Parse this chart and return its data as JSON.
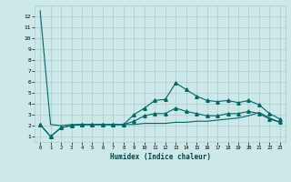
{
  "title": "",
  "xlabel": "Humidex (Indice chaleur)",
  "ylabel": "",
  "bg_color": "#cce8e8",
  "grid_color": "#aacccc",
  "line_color": "#006666",
  "xlim": [
    -0.5,
    23.5
  ],
  "ylim": [
    0.5,
    13
  ],
  "xticks": [
    0,
    1,
    2,
    3,
    4,
    5,
    6,
    7,
    8,
    9,
    10,
    11,
    12,
    13,
    14,
    15,
    16,
    17,
    18,
    19,
    20,
    21,
    22,
    23
  ],
  "yticks": [
    1,
    2,
    3,
    4,
    5,
    6,
    7,
    8,
    9,
    10,
    11,
    12
  ],
  "line1_x": [
    0,
    1,
    2,
    3,
    4,
    5,
    6,
    7,
    8,
    9,
    10,
    11,
    12,
    13,
    14,
    15,
    16,
    17,
    18,
    19,
    20,
    21,
    22,
    23
  ],
  "line1_y": [
    12.5,
    2.1,
    2.0,
    2.1,
    2.1,
    2.1,
    2.1,
    2.1,
    2.1,
    2.1,
    2.2,
    2.2,
    2.2,
    2.3,
    2.3,
    2.4,
    2.4,
    2.5,
    2.6,
    2.7,
    2.9,
    3.2,
    2.7,
    2.3
  ],
  "line2_x": [
    0,
    1,
    2,
    3,
    4,
    5,
    6,
    7,
    8,
    9,
    10,
    11,
    12,
    13,
    14,
    15,
    16,
    17,
    18,
    19,
    20,
    21,
    22,
    23
  ],
  "line2_y": [
    2.1,
    1.0,
    1.8,
    2.0,
    2.1,
    2.1,
    2.1,
    2.1,
    2.1,
    3.0,
    3.6,
    4.3,
    4.4,
    5.9,
    5.3,
    4.7,
    4.3,
    4.2,
    4.3,
    4.1,
    4.3,
    3.9,
    3.1,
    2.6
  ],
  "line3_x": [
    0,
    1,
    2,
    3,
    4,
    5,
    6,
    7,
    8,
    9,
    10,
    11,
    12,
    13,
    14,
    15,
    16,
    17,
    18,
    19,
    20,
    21,
    22,
    23
  ],
  "line3_y": [
    2.1,
    1.0,
    1.8,
    2.0,
    2.1,
    2.1,
    2.1,
    2.1,
    2.1,
    2.4,
    2.9,
    3.1,
    3.1,
    3.6,
    3.3,
    3.1,
    2.9,
    2.9,
    3.1,
    3.1,
    3.3,
    3.1,
    2.6,
    2.3
  ],
  "marker": "^",
  "markersize": 2.5,
  "linewidth": 0.8
}
